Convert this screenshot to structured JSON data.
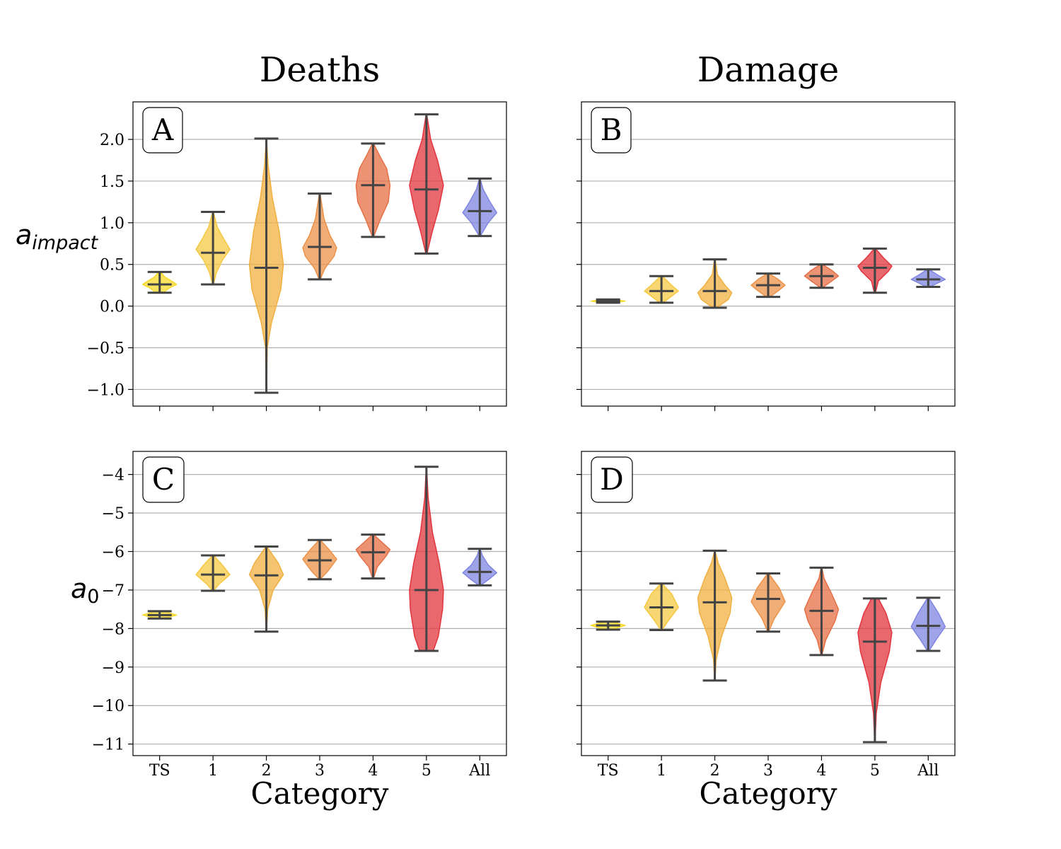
{
  "figure": {
    "col_titles": [
      "Deaths",
      "Damage"
    ],
    "xlabel": "Category",
    "ylabel_top_main": "a",
    "ylabel_top_sub": "impact",
    "ylabel_bottom_main": "a",
    "ylabel_bottom_sub": "0"
  },
  "colors": {
    "TS": "#f7d92a",
    "1": "#f5c842",
    "2": "#f0b040",
    "3": "#ec9248",
    "4": "#e66f45",
    "5": "#e2353e",
    "All": "#7f85e0",
    "stat_lines": "#444444",
    "grid": "#b0b0b0"
  },
  "chart_data": [
    {
      "type": "violin",
      "panel_label": "A",
      "column": "Deaths",
      "categories": [
        "TS",
        "1",
        "2",
        "3",
        "4",
        "5",
        "All"
      ],
      "ylim": [
        -1.2,
        2.45
      ],
      "yticks": [
        -1.0,
        -0.5,
        0.0,
        0.5,
        1.0,
        1.5,
        2.0
      ],
      "ytick_labels": [
        "−1.0",
        "−0.5",
        "0.0",
        "0.5",
        "1.0",
        "1.5",
        "2.0"
      ],
      "show_yticklabels": true,
      "show_xticklabels": false,
      "grid": true,
      "series": [
        {
          "category": "TS",
          "min": 0.16,
          "median": 0.26,
          "max": 0.41,
          "profile": [
            [
              0.16,
              0.2
            ],
            [
              0.22,
              0.6
            ],
            [
              0.26,
              1.0
            ],
            [
              0.3,
              0.7
            ],
            [
              0.35,
              0.3
            ],
            [
              0.41,
              0.05
            ]
          ]
        },
        {
          "category": "1",
          "min": 0.26,
          "median": 0.64,
          "max": 1.13,
          "profile": [
            [
              0.26,
              0.02
            ],
            [
              0.4,
              0.2
            ],
            [
              0.55,
              0.55
            ],
            [
              0.68,
              1.0
            ],
            [
              0.8,
              0.65
            ],
            [
              0.95,
              0.25
            ],
            [
              1.13,
              0.02
            ]
          ]
        },
        {
          "category": "2",
          "min": -1.04,
          "median": 0.46,
          "max": 2.01,
          "profile": [
            [
              -1.04,
              0.01
            ],
            [
              -0.5,
              0.05
            ],
            [
              -0.2,
              0.3
            ],
            [
              0.2,
              0.85
            ],
            [
              0.5,
              1.0
            ],
            [
              0.9,
              0.75
            ],
            [
              1.3,
              0.35
            ],
            [
              1.7,
              0.1
            ],
            [
              2.01,
              0.01
            ]
          ]
        },
        {
          "category": "3",
          "min": 0.32,
          "median": 0.71,
          "max": 1.35,
          "profile": [
            [
              0.32,
              0.03
            ],
            [
              0.45,
              0.3
            ],
            [
              0.6,
              0.85
            ],
            [
              0.7,
              1.0
            ],
            [
              0.85,
              0.6
            ],
            [
              1.05,
              0.25
            ],
            [
              1.35,
              0.02
            ]
          ]
        },
        {
          "category": "4",
          "min": 0.83,
          "median": 1.45,
          "max": 1.95,
          "profile": [
            [
              0.83,
              0.03
            ],
            [
              1.05,
              0.45
            ],
            [
              1.25,
              0.9
            ],
            [
              1.45,
              1.0
            ],
            [
              1.65,
              0.8
            ],
            [
              1.8,
              0.4
            ],
            [
              1.95,
              0.03
            ]
          ]
        },
        {
          "category": "5",
          "min": 0.63,
          "median": 1.4,
          "max": 2.3,
          "profile": [
            [
              0.63,
              0.03
            ],
            [
              0.9,
              0.35
            ],
            [
              1.15,
              0.7
            ],
            [
              1.45,
              1.0
            ],
            [
              1.75,
              0.65
            ],
            [
              2.0,
              0.25
            ],
            [
              2.3,
              0.02
            ]
          ]
        },
        {
          "category": "All",
          "min": 0.84,
          "median": 1.14,
          "max": 1.53,
          "profile": [
            [
              0.84,
              0.03
            ],
            [
              1.0,
              0.5
            ],
            [
              1.12,
              1.0
            ],
            [
              1.25,
              0.6
            ],
            [
              1.4,
              0.2
            ],
            [
              1.53,
              0.02
            ]
          ]
        }
      ]
    },
    {
      "type": "violin",
      "panel_label": "B",
      "column": "Damage",
      "categories": [
        "TS",
        "1",
        "2",
        "3",
        "4",
        "5",
        "All"
      ],
      "ylim": [
        -1.2,
        2.45
      ],
      "yticks": [
        -1.0,
        -0.5,
        0.0,
        0.5,
        1.0,
        1.5,
        2.0
      ],
      "ytick_labels": [
        "−1.0",
        "−0.5",
        "0.0",
        "0.5",
        "1.0",
        "1.5",
        "2.0"
      ],
      "show_yticklabels": false,
      "show_xticklabels": false,
      "grid": true,
      "series": [
        {
          "category": "TS",
          "min": 0.04,
          "median": 0.06,
          "max": 0.08,
          "profile": [
            [
              0.04,
              0.3
            ],
            [
              0.06,
              1.0
            ],
            [
              0.08,
              0.3
            ]
          ]
        },
        {
          "category": "1",
          "min": 0.04,
          "median": 0.18,
          "max": 0.36,
          "profile": [
            [
              0.04,
              0.1
            ],
            [
              0.12,
              0.6
            ],
            [
              0.18,
              1.0
            ],
            [
              0.25,
              0.6
            ],
            [
              0.36,
              0.05
            ]
          ]
        },
        {
          "category": "2",
          "min": -0.02,
          "median": 0.18,
          "max": 0.56,
          "profile": [
            [
              -0.02,
              0.1
            ],
            [
              0.08,
              0.8
            ],
            [
              0.16,
              1.0
            ],
            [
              0.25,
              0.6
            ],
            [
              0.38,
              0.15
            ],
            [
              0.56,
              0.02
            ]
          ]
        },
        {
          "category": "3",
          "min": 0.11,
          "median": 0.25,
          "max": 0.39,
          "profile": [
            [
              0.11,
              0.1
            ],
            [
              0.2,
              0.7
            ],
            [
              0.25,
              1.0
            ],
            [
              0.32,
              0.6
            ],
            [
              0.39,
              0.05
            ]
          ]
        },
        {
          "category": "4",
          "min": 0.22,
          "median": 0.36,
          "max": 0.5,
          "profile": [
            [
              0.22,
              0.05
            ],
            [
              0.3,
              0.6
            ],
            [
              0.36,
              1.0
            ],
            [
              0.43,
              0.6
            ],
            [
              0.5,
              0.05
            ]
          ]
        },
        {
          "category": "5",
          "min": 0.16,
          "median": 0.46,
          "max": 0.69,
          "profile": [
            [
              0.16,
              0.03
            ],
            [
              0.3,
              0.2
            ],
            [
              0.42,
              0.8
            ],
            [
              0.48,
              1.0
            ],
            [
              0.58,
              0.5
            ],
            [
              0.69,
              0.03
            ]
          ]
        },
        {
          "category": "All",
          "min": 0.23,
          "median": 0.32,
          "max": 0.44,
          "profile": [
            [
              0.23,
              0.1
            ],
            [
              0.28,
              0.6
            ],
            [
              0.32,
              1.0
            ],
            [
              0.38,
              0.5
            ],
            [
              0.44,
              0.05
            ]
          ]
        }
      ]
    },
    {
      "type": "violin",
      "panel_label": "C",
      "column": "Deaths",
      "categories": [
        "TS",
        "1",
        "2",
        "3",
        "4",
        "5",
        "All"
      ],
      "ylim": [
        -11.3,
        -3.4
      ],
      "yticks": [
        -11,
        -10,
        -9,
        -8,
        -7,
        -6,
        -5,
        -4
      ],
      "ytick_labels": [
        "−11",
        "−10",
        "−9",
        "−8",
        "−7",
        "−6",
        "−5",
        "−4"
      ],
      "show_yticklabels": true,
      "show_xticklabels": true,
      "grid": true,
      "series": [
        {
          "category": "TS",
          "min": -7.74,
          "median": -7.65,
          "max": -7.55,
          "profile": [
            [
              -7.74,
              0.2
            ],
            [
              -7.65,
              1.0
            ],
            [
              -7.55,
              0.2
            ]
          ]
        },
        {
          "category": "1",
          "min": -7.02,
          "median": -6.6,
          "max": -6.1,
          "profile": [
            [
              -7.02,
              0.03
            ],
            [
              -6.85,
              0.35
            ],
            [
              -6.6,
              1.0
            ],
            [
              -6.35,
              0.55
            ],
            [
              -6.1,
              0.03
            ]
          ]
        },
        {
          "category": "2",
          "min": -8.08,
          "median": -6.62,
          "max": -5.87,
          "profile": [
            [
              -8.08,
              0.01
            ],
            [
              -7.5,
              0.08
            ],
            [
              -7.0,
              0.4
            ],
            [
              -6.6,
              1.0
            ],
            [
              -6.3,
              0.7
            ],
            [
              -5.87,
              0.02
            ]
          ]
        },
        {
          "category": "3",
          "min": -6.72,
          "median": -6.23,
          "max": -5.7,
          "profile": [
            [
              -6.72,
              0.03
            ],
            [
              -6.5,
              0.5
            ],
            [
              -6.2,
              1.0
            ],
            [
              -5.95,
              0.55
            ],
            [
              -5.7,
              0.03
            ]
          ]
        },
        {
          "category": "4",
          "min": -6.7,
          "median": -6.02,
          "max": -5.56,
          "profile": [
            [
              -6.7,
              0.02
            ],
            [
              -6.4,
              0.25
            ],
            [
              -6.1,
              0.8
            ],
            [
              -5.95,
              1.0
            ],
            [
              -5.75,
              0.5
            ],
            [
              -5.56,
              0.03
            ]
          ]
        },
        {
          "category": "5",
          "min": -8.58,
          "median": -7.0,
          "max": -3.8,
          "profile": [
            [
              -8.58,
              0.4
            ],
            [
              -8.2,
              0.7
            ],
            [
              -7.5,
              0.95
            ],
            [
              -7.0,
              1.0
            ],
            [
              -6.3,
              0.75
            ],
            [
              -5.5,
              0.35
            ],
            [
              -4.6,
              0.1
            ],
            [
              -3.8,
              0.01
            ]
          ]
        },
        {
          "category": "All",
          "min": -6.88,
          "median": -6.53,
          "max": -5.93,
          "profile": [
            [
              -6.88,
              0.05
            ],
            [
              -6.7,
              0.6
            ],
            [
              -6.55,
              1.0
            ],
            [
              -6.35,
              0.5
            ],
            [
              -6.1,
              0.15
            ],
            [
              -5.93,
              0.02
            ]
          ]
        }
      ]
    },
    {
      "type": "violin",
      "panel_label": "D",
      "column": "Damage",
      "categories": [
        "TS",
        "1",
        "2",
        "3",
        "4",
        "5",
        "All"
      ],
      "ylim": [
        -11.3,
        -3.4
      ],
      "yticks": [
        -11,
        -10,
        -9,
        -8,
        -7,
        -6,
        -5,
        -4
      ],
      "ytick_labels": [
        "−11",
        "−10",
        "−9",
        "−8",
        "−7",
        "−6",
        "−5",
        "−4"
      ],
      "show_yticklabels": false,
      "show_xticklabels": true,
      "grid": true,
      "series": [
        {
          "category": "TS",
          "min": -8.03,
          "median": -7.92,
          "max": -7.82,
          "profile": [
            [
              -8.03,
              0.2
            ],
            [
              -7.92,
              1.0
            ],
            [
              -7.82,
              0.2
            ]
          ]
        },
        {
          "category": "1",
          "min": -8.04,
          "median": -7.45,
          "max": -6.83,
          "profile": [
            [
              -8.04,
              0.03
            ],
            [
              -7.8,
              0.4
            ],
            [
              -7.45,
              1.0
            ],
            [
              -7.1,
              0.6
            ],
            [
              -6.83,
              0.03
            ]
          ]
        },
        {
          "category": "2",
          "min": -9.35,
          "median": -7.32,
          "max": -5.98,
          "profile": [
            [
              -9.35,
              0.01
            ],
            [
              -8.8,
              0.08
            ],
            [
              -8.2,
              0.4
            ],
            [
              -7.6,
              0.9
            ],
            [
              -7.2,
              1.0
            ],
            [
              -6.7,
              0.6
            ],
            [
              -6.3,
              0.2
            ],
            [
              -5.98,
              0.01
            ]
          ]
        },
        {
          "category": "3",
          "min": -8.08,
          "median": -7.23,
          "max": -6.57,
          "profile": [
            [
              -8.08,
              0.03
            ],
            [
              -7.75,
              0.35
            ],
            [
              -7.3,
              1.0
            ],
            [
              -6.95,
              0.65
            ],
            [
              -6.57,
              0.03
            ]
          ]
        },
        {
          "category": "4",
          "min": -8.69,
          "median": -7.54,
          "max": -6.42,
          "profile": [
            [
              -8.69,
              0.02
            ],
            [
              -8.3,
              0.25
            ],
            [
              -7.8,
              0.8
            ],
            [
              -7.5,
              1.0
            ],
            [
              -7.1,
              0.6
            ],
            [
              -6.7,
              0.15
            ],
            [
              -6.42,
              0.02
            ]
          ]
        },
        {
          "category": "5",
          "min": -10.95,
          "median": -8.34,
          "max": -7.22,
          "profile": [
            [
              -10.95,
              0.01
            ],
            [
              -10.2,
              0.08
            ],
            [
              -9.4,
              0.35
            ],
            [
              -8.6,
              0.85
            ],
            [
              -8.1,
              1.0
            ],
            [
              -7.6,
              0.65
            ],
            [
              -7.22,
              0.2
            ]
          ]
        },
        {
          "category": "All",
          "min": -8.58,
          "median": -7.93,
          "max": -7.2,
          "profile": [
            [
              -8.58,
              0.05
            ],
            [
              -8.3,
              0.45
            ],
            [
              -7.95,
              1.0
            ],
            [
              -7.6,
              0.6
            ],
            [
              -7.2,
              0.03
            ]
          ]
        }
      ]
    }
  ]
}
